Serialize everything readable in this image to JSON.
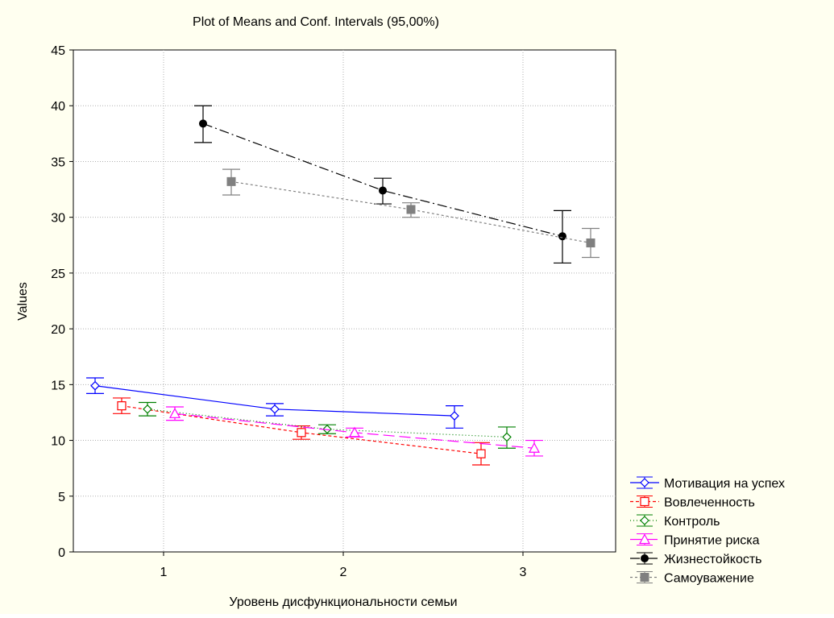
{
  "chart_data": {
    "type": "line",
    "title": "Plot of Means and Conf. Intervals (95,00%)",
    "xlabel": "Уровень дисфункциональности семьи",
    "ylabel": "Values",
    "categories": [
      "1",
      "2",
      "3"
    ],
    "ylim": [
      0,
      45
    ],
    "yticks": [
      0,
      5,
      10,
      15,
      20,
      25,
      30,
      35,
      40,
      45
    ],
    "grid": true,
    "legend_position": "right-bottom",
    "series": [
      {
        "name": "Мотивация на успех",
        "color": "#0000ff",
        "line_style": "solid",
        "marker": "diamond-open",
        "points": [
          {
            "x": 1,
            "mean": 14.9,
            "low": 14.2,
            "high": 15.6
          },
          {
            "x": 2,
            "mean": 12.8,
            "low": 12.2,
            "high": 13.3
          },
          {
            "x": 3,
            "mean": 12.2,
            "low": 11.1,
            "high": 13.1
          }
        ]
      },
      {
        "name": "Вовлеченность",
        "color": "#ff0000",
        "line_style": "dashed",
        "marker": "square-open",
        "points": [
          {
            "x": 1,
            "mean": 13.1,
            "low": 12.4,
            "high": 13.8
          },
          {
            "x": 2,
            "mean": 10.7,
            "low": 10.1,
            "high": 11.3
          },
          {
            "x": 3,
            "mean": 8.8,
            "low": 7.8,
            "high": 9.8
          }
        ]
      },
      {
        "name": "Контроль",
        "color": "#008000",
        "line_style": "dotted",
        "marker": "diamond-open",
        "points": [
          {
            "x": 1,
            "mean": 12.8,
            "low": 12.2,
            "high": 13.4
          },
          {
            "x": 2,
            "mean": 11.0,
            "low": 10.6,
            "high": 11.4
          },
          {
            "x": 3,
            "mean": 10.3,
            "low": 9.3,
            "high": 11.2
          }
        ]
      },
      {
        "name": "Принятие риска",
        "color": "#ff00ff",
        "line_style": "long-dash",
        "marker": "triangle-open",
        "points": [
          {
            "x": 1,
            "mean": 12.4,
            "low": 11.8,
            "high": 13.0
          },
          {
            "x": 2,
            "mean": 10.7,
            "low": 10.3,
            "high": 11.1
          },
          {
            "x": 3,
            "mean": 9.3,
            "low": 8.6,
            "high": 10.0
          }
        ]
      },
      {
        "name": "Жизнестойкость",
        "color": "#000000",
        "line_style": "dash-dot",
        "marker": "circle-filled",
        "points": [
          {
            "x": 1,
            "mean": 38.4,
            "low": 36.7,
            "high": 40.0
          },
          {
            "x": 2,
            "mean": 32.4,
            "low": 31.2,
            "high": 33.5
          },
          {
            "x": 3,
            "mean": 28.3,
            "low": 25.9,
            "high": 30.6
          }
        ]
      },
      {
        "name": "Самоуважение",
        "color": "#808080",
        "line_style": "short-dash",
        "marker": "square-filled",
        "points": [
          {
            "x": 1,
            "mean": 33.2,
            "low": 32.0,
            "high": 34.3
          },
          {
            "x": 2,
            "mean": 30.7,
            "low": 30.0,
            "high": 31.3
          },
          {
            "x": 3,
            "mean": 27.7,
            "low": 26.4,
            "high": 29.0
          }
        ]
      }
    ]
  }
}
